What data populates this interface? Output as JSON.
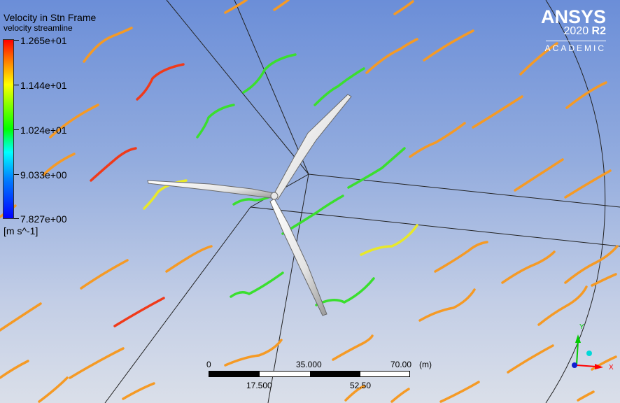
{
  "legend": {
    "title": "Velocity in Stn Frame",
    "subtitle": "velocity streamline",
    "ticks": [
      "1.265e+01",
      "1.144e+01",
      "1.024e+01",
      "9.033e+00",
      "7.827e+00"
    ],
    "units": "[m s^-1]"
  },
  "logo": {
    "name": "ANSYS",
    "version_year": "2020",
    "version_release": "R2",
    "edition": "ACADEMIC"
  },
  "scale_bar": {
    "top_labels": [
      "0",
      "35.000",
      "70.00"
    ],
    "unit": "(m)",
    "bottom_labels": [
      "17.500",
      "52.50"
    ]
  },
  "axes": {
    "y_label": "Y",
    "x_label": "X",
    "y_color": "#00cc00",
    "x_color": "#ff0000",
    "z_color": "#00cccc"
  },
  "colors": {
    "stream_red": "#f03a1a",
    "stream_orange": "#f59a25",
    "stream_yellow": "#e8e82a",
    "stream_green": "#3adf2e",
    "blade": "#f2f2f2"
  }
}
